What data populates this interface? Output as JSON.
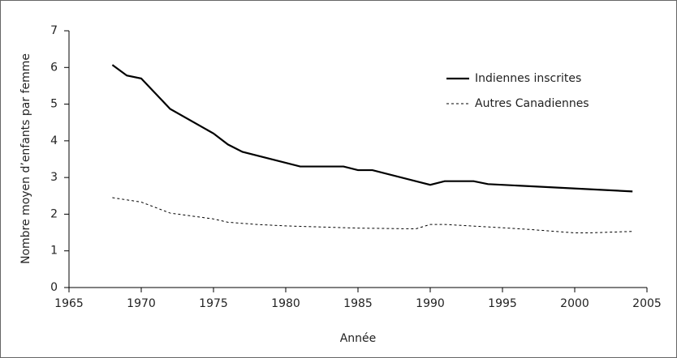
{
  "chart_data": {
    "type": "line",
    "xlabel": "Année",
    "ylabel": "Nombre moyen d’enfants par femme",
    "xlim": [
      1965,
      2005
    ],
    "xticks": [
      1965,
      1970,
      1975,
      1980,
      1985,
      1990,
      1995,
      2000,
      2005
    ],
    "ylim": [
      0,
      7
    ],
    "yticks": [
      0,
      1,
      2,
      3,
      4,
      5,
      6,
      7
    ],
    "legend": "upper right",
    "series": [
      {
        "name": "Indiennes inscrites",
        "color": "#000000",
        "style": "solid",
        "x": [
          1968,
          1969,
          1970,
          1972,
          1975,
          1976,
          1977,
          1981,
          1984,
          1985,
          1986,
          1990,
          1991,
          1993,
          1994,
          2004
        ],
        "values": [
          6.07,
          5.78,
          5.7,
          4.87,
          4.2,
          3.9,
          3.7,
          3.3,
          3.3,
          3.2,
          3.2,
          2.8,
          2.9,
          2.9,
          2.82,
          2.62
        ]
      },
      {
        "name": "Autres Canadiennes",
        "color": "#000000",
        "style": "dashed",
        "x": [
          1968,
          1970,
          1972,
          1975,
          1976,
          1978,
          1980,
          1985,
          1989,
          1990,
          1991,
          1995,
          1997,
          2000,
          2001,
          2004
        ],
        "values": [
          2.45,
          2.33,
          2.03,
          1.87,
          1.78,
          1.72,
          1.68,
          1.62,
          1.6,
          1.72,
          1.72,
          1.63,
          1.58,
          1.49,
          1.49,
          1.53
        ]
      }
    ]
  }
}
